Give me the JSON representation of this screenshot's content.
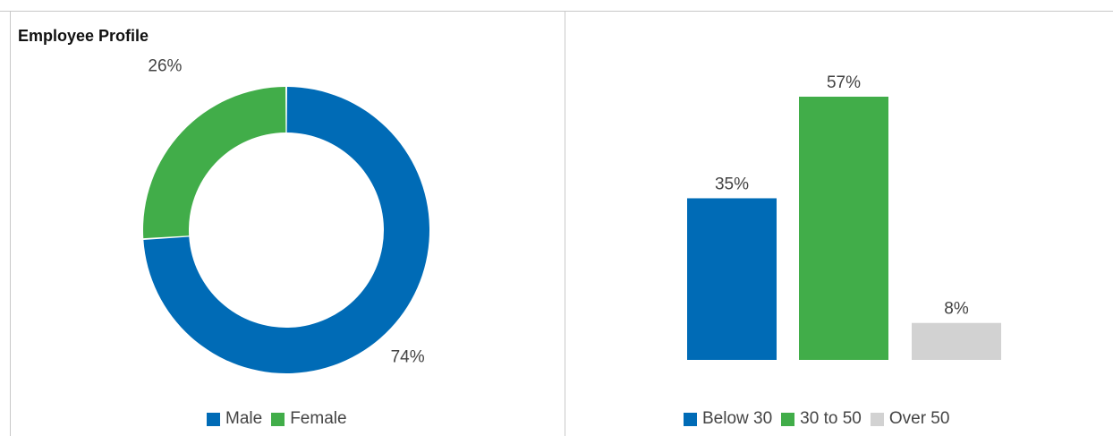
{
  "title": "Employee Profile",
  "colors": {
    "blue": "#006bb6",
    "green": "#41ad49",
    "gray": "#d2d2d2"
  },
  "chart_data": [
    {
      "type": "pie",
      "variant": "donut",
      "labels": [
        "Male",
        "Female"
      ],
      "values": [
        74,
        26
      ],
      "value_labels": [
        "74%",
        "26%"
      ],
      "colors": [
        "#006bb6",
        "#41ad49"
      ],
      "legend": [
        "Male",
        "Female"
      ],
      "legend_position": "bottom"
    },
    {
      "type": "bar",
      "categories": [
        "Below 30",
        "30 to 50",
        "Over 50"
      ],
      "values": [
        35,
        57,
        8
      ],
      "value_labels": [
        "35%",
        "57%",
        "8%"
      ],
      "colors": [
        "#006bb6",
        "#41ad49",
        "#d2d2d2"
      ],
      "ylim": [
        0,
        57
      ],
      "grid": false,
      "legend": [
        "Below 30",
        "30 to 50",
        "Over 50"
      ],
      "legend_position": "bottom"
    }
  ]
}
